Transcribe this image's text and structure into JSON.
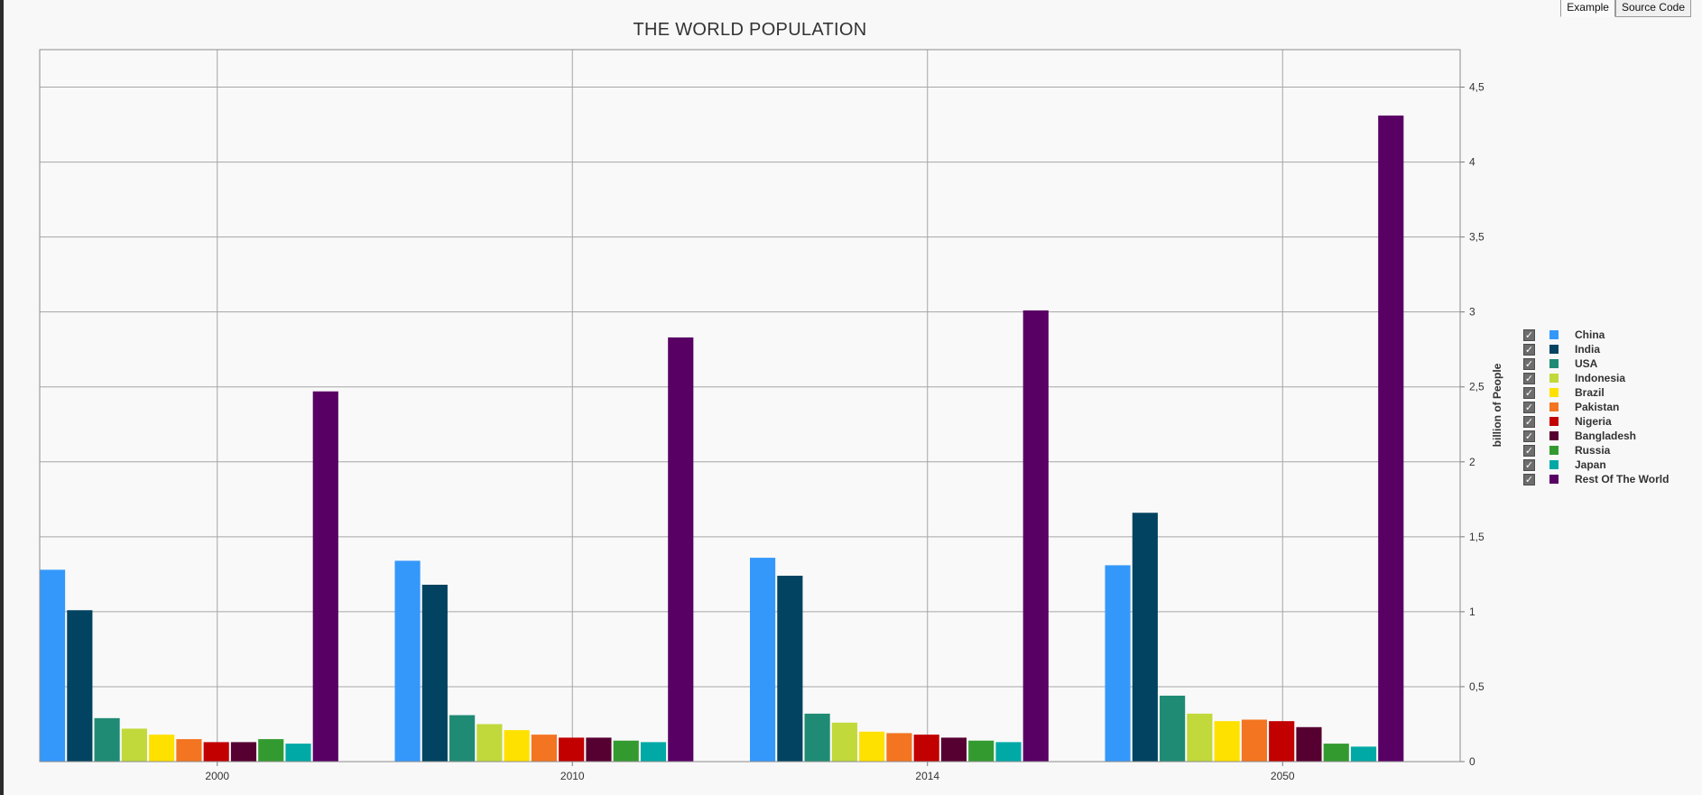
{
  "tabs": [
    {
      "label": "Example"
    },
    {
      "label": "Source Code"
    }
  ],
  "chart_data": {
    "type": "bar",
    "title": "THE WORLD POPULATION",
    "xlabel": "",
    "ylabel": "billion of People",
    "ylim": [
      0,
      4.75
    ],
    "yticks": [
      0,
      0.5,
      1,
      1.5,
      2,
      2.5,
      3,
      3.5,
      4,
      4.5
    ],
    "ytick_labels": [
      "0",
      "0,5",
      "1",
      "1,5",
      "2",
      "2,5",
      "3",
      "3,5",
      "4",
      "4,5"
    ],
    "y_axis_side": "right",
    "grid": true,
    "legend_position": "right",
    "categories": [
      "2000",
      "2010",
      "2014",
      "2050"
    ],
    "series": [
      {
        "name": "China",
        "color": "#3498fb",
        "values": [
          1.28,
          1.34,
          1.36,
          1.31
        ]
      },
      {
        "name": "India",
        "color": "#014360",
        "values": [
          1.01,
          1.18,
          1.24,
          1.66
        ]
      },
      {
        "name": "USA",
        "color": "#1f8b74",
        "values": [
          0.29,
          0.31,
          0.32,
          0.44
        ]
      },
      {
        "name": "Indonesia",
        "color": "#c1d93b",
        "values": [
          0.22,
          0.25,
          0.26,
          0.32
        ]
      },
      {
        "name": "Brazil",
        "color": "#ffe100",
        "values": [
          0.18,
          0.21,
          0.2,
          0.27
        ]
      },
      {
        "name": "Pakistan",
        "color": "#f37521",
        "values": [
          0.15,
          0.18,
          0.19,
          0.28
        ]
      },
      {
        "name": "Nigeria",
        "color": "#c20000",
        "values": [
          0.13,
          0.16,
          0.18,
          0.27
        ]
      },
      {
        "name": "Bangladesh",
        "color": "#560031",
        "values": [
          0.13,
          0.16,
          0.16,
          0.23
        ]
      },
      {
        "name": "Russia",
        "color": "#339a30",
        "values": [
          0.15,
          0.14,
          0.14,
          0.12
        ]
      },
      {
        "name": "Japan",
        "color": "#00a9a6",
        "values": [
          0.12,
          0.13,
          0.13,
          0.1
        ]
      },
      {
        "name": "Rest Of The World",
        "color": "#580064",
        "values": [
          2.47,
          2.83,
          3.01,
          4.31
        ]
      }
    ]
  }
}
